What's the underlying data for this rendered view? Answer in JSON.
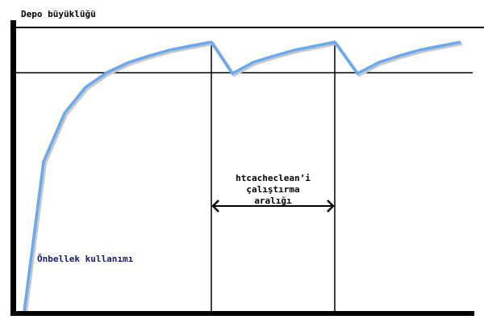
{
  "diagram": {
    "y_axis_label": "Depo büyüklüğü",
    "interval_label": [
      "htcacheclean’i",
      "çalıştırma",
      "aralığı"
    ],
    "curve_label": "Önbellek kullanımı",
    "colors": {
      "curve": "#6aa8f0",
      "curve_shadow": "#c8c8c8",
      "lines": "#000000",
      "curve_label": "#1a1a6e"
    }
  }
}
